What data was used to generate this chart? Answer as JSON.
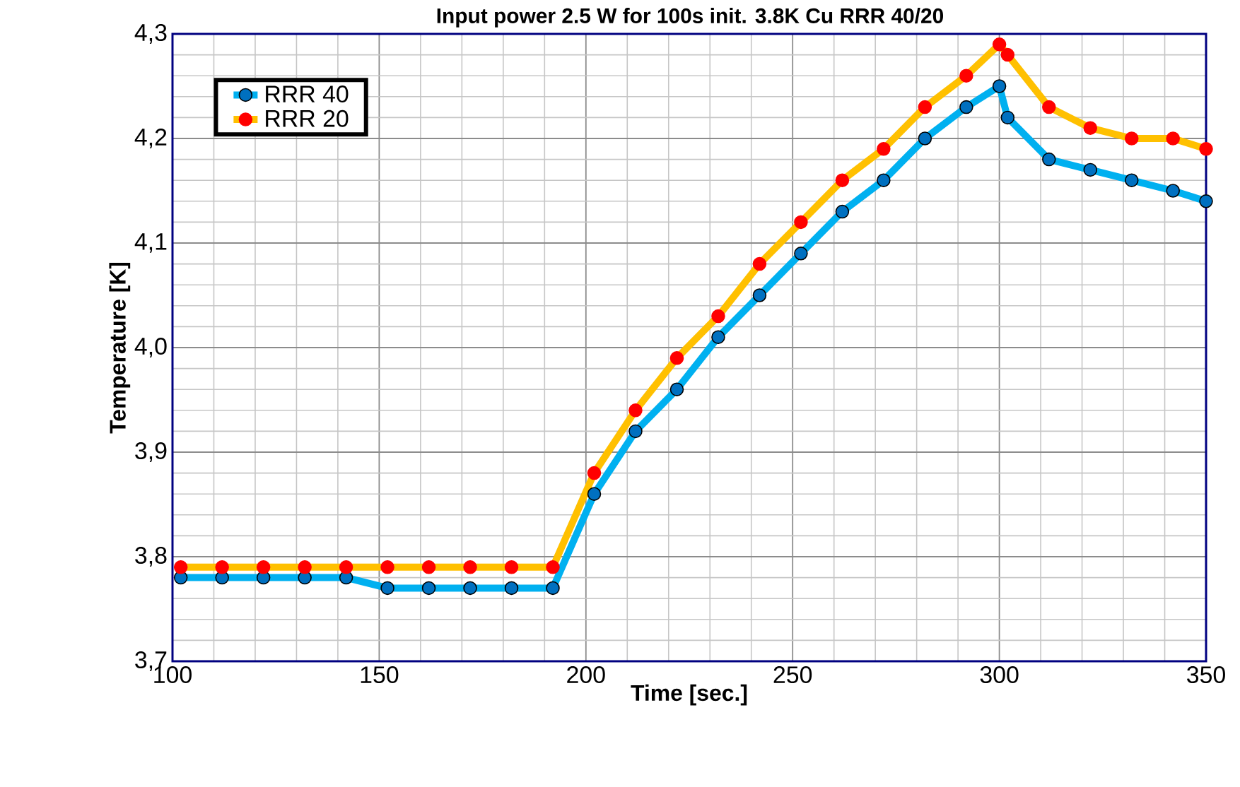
{
  "chart_data": {
    "type": "line",
    "title": "Input power 2.5 W for 100s init. 3.8K Cu RRR 40/20",
    "xlabel": "Time [sec.]",
    "ylabel": "Temperature [K]",
    "x": [
      102,
      112,
      122,
      132,
      142,
      152,
      162,
      172,
      182,
      192,
      202,
      212,
      222,
      232,
      242,
      252,
      262,
      272,
      282,
      292,
      300,
      302,
      312,
      322,
      332,
      342,
      350
    ],
    "series": [
      {
        "name": "RRR 40",
        "color": "#00b0f0",
        "values": [
          3.78,
          3.78,
          3.78,
          3.78,
          3.78,
          3.77,
          3.77,
          3.77,
          3.77,
          3.77,
          3.86,
          3.92,
          3.96,
          4.01,
          4.05,
          4.09,
          4.13,
          4.16,
          4.2,
          4.23,
          4.25,
          4.22,
          4.18,
          4.17,
          4.16,
          4.15,
          4.14
        ]
      },
      {
        "name": "RRR 20",
        "color": "#ffc000",
        "values": [
          3.79,
          3.79,
          3.79,
          3.79,
          3.79,
          3.79,
          3.79,
          3.79,
          3.79,
          3.79,
          3.88,
          3.94,
          3.99,
          4.03,
          4.08,
          4.12,
          4.16,
          4.19,
          4.23,
          4.26,
          4.29,
          4.28,
          4.23,
          4.21,
          4.2,
          4.2,
          4.19
        ]
      }
    ],
    "xlim": [
      100,
      350
    ],
    "ylim": [
      3.7,
      4.3
    ],
    "xticks": [
      100,
      150,
      200,
      250,
      300,
      350
    ],
    "yticks": [
      {
        "value": 3.7,
        "label": "3,7"
      },
      {
        "value": 3.8,
        "label": "3,8"
      },
      {
        "value": 3.9,
        "label": "3,9"
      },
      {
        "value": 4.0,
        "label": "4,0"
      },
      {
        "value": 4.1,
        "label": "4,1"
      },
      {
        "value": 4.2,
        "label": "4,2"
      },
      {
        "value": 4.3,
        "label": "4,3"
      }
    ],
    "grid": true,
    "legend": "top left",
    "marker": "circle",
    "line_style": "solid"
  }
}
